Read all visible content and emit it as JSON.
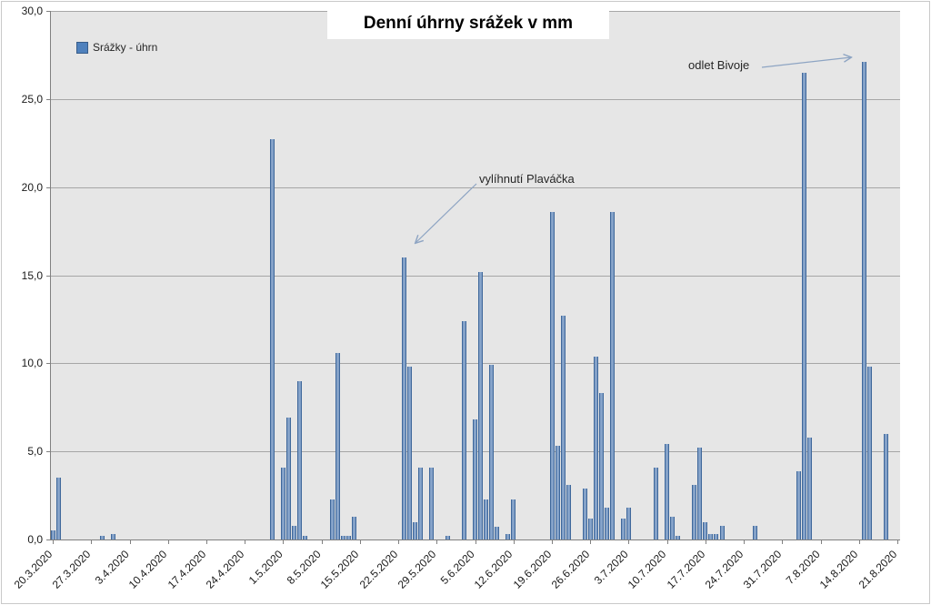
{
  "title": "Denní úhrny srážek v mm",
  "legend": {
    "label": "Srážky - úhrn",
    "swatch_color": "#4F81BD"
  },
  "annotations": {
    "hatch": {
      "text": "vylíhnutí Plaváčka",
      "target_date": "23.5.2020"
    },
    "departure": {
      "text": "odlet Bivoje",
      "target_date": "15.8.2020"
    }
  },
  "colors": {
    "bar_fill": "#4F81BD",
    "bar_border": "#3F689B",
    "plot_background": "#E6E6E6",
    "gridline": "#A6A6A6",
    "axis_line": "#808080",
    "arrow": "#8DA4C3"
  },
  "chart_data": {
    "type": "bar",
    "title": "Denní úhrny srážek v mm",
    "series_name": "Srážky - úhrn",
    "xlabel": "",
    "ylabel": "",
    "ylim": [
      0,
      30
    ],
    "grid": true,
    "legend_position": "top-left-inside",
    "y_tick_labels": [
      "0,0",
      "5,0",
      "10,0",
      "15,0",
      "20,0",
      "25,0",
      "30,0"
    ],
    "x_tick_labels": [
      "20.3.2020",
      "27.3.2020",
      "3.4.2020",
      "10.4.2020",
      "17.4.2020",
      "24.4.2020",
      "1.5.2020",
      "8.5.2020",
      "15.5.2020",
      "22.5.2020",
      "29.5.2020",
      "5.6.2020",
      "12.6.2020",
      "19.6.2020",
      "26.6.2020",
      "3.7.2020",
      "10.7.2020",
      "17.7.2020",
      "24.7.2020",
      "31.7.2020",
      "7.8.2020",
      "14.8.2020",
      "21.8.2020"
    ],
    "x_start_date": "20.3.2020",
    "x_end_date": "21.8.2020",
    "num_days": 155,
    "points": [
      {
        "day": 0,
        "date": "20.3.2020",
        "value": 0.5
      },
      {
        "day": 1,
        "date": "21.3.2020",
        "value": 3.5
      },
      {
        "day": 9,
        "date": "29.3.2020",
        "value": 0.2
      },
      {
        "day": 11,
        "date": "31.3.2020",
        "value": 0.3
      },
      {
        "day": 40,
        "date": "29.4.2020",
        "value": 22.7
      },
      {
        "day": 42,
        "date": "1.5.2020",
        "value": 4.1
      },
      {
        "day": 43,
        "date": "2.5.2020",
        "value": 6.9
      },
      {
        "day": 44,
        "date": "3.5.2020",
        "value": 0.8
      },
      {
        "day": 45,
        "date": "4.5.2020",
        "value": 9.0
      },
      {
        "day": 46,
        "date": "5.5.2020",
        "value": 0.2
      },
      {
        "day": 51,
        "date": "10.5.2020",
        "value": 2.3
      },
      {
        "day": 52,
        "date": "11.5.2020",
        "value": 10.6
      },
      {
        "day": 53,
        "date": "12.5.2020",
        "value": 0.2
      },
      {
        "day": 54,
        "date": "13.5.2020",
        "value": 0.2
      },
      {
        "day": 55,
        "date": "14.5.2020",
        "value": 1.3
      },
      {
        "day": 64,
        "date": "23.5.2020",
        "value": 16.0
      },
      {
        "day": 65,
        "date": "24.5.2020",
        "value": 9.8
      },
      {
        "day": 66,
        "date": "25.5.2020",
        "value": 1.0
      },
      {
        "day": 67,
        "date": "26.5.2020",
        "value": 4.1
      },
      {
        "day": 69,
        "date": "28.5.2020",
        "value": 4.1
      },
      {
        "day": 72,
        "date": "31.5.2020",
        "value": 0.2
      },
      {
        "day": 75,
        "date": "3.6.2020",
        "value": 12.4
      },
      {
        "day": 77,
        "date": "5.6.2020",
        "value": 6.8
      },
      {
        "day": 78,
        "date": "6.6.2020",
        "value": 15.2
      },
      {
        "day": 79,
        "date": "7.6.2020",
        "value": 2.3
      },
      {
        "day": 80,
        "date": "8.6.2020",
        "value": 9.9
      },
      {
        "day": 81,
        "date": "9.6.2020",
        "value": 0.7
      },
      {
        "day": 83,
        "date": "11.6.2020",
        "value": 0.3
      },
      {
        "day": 84,
        "date": "12.6.2020",
        "value": 2.3
      },
      {
        "day": 91,
        "date": "19.6.2020",
        "value": 18.6
      },
      {
        "day": 92,
        "date": "20.6.2020",
        "value": 5.3
      },
      {
        "day": 93,
        "date": "21.6.2020",
        "value": 12.7
      },
      {
        "day": 94,
        "date": "22.6.2020",
        "value": 3.1
      },
      {
        "day": 97,
        "date": "25.6.2020",
        "value": 2.9
      },
      {
        "day": 98,
        "date": "26.6.2020",
        "value": 1.2
      },
      {
        "day": 99,
        "date": "27.6.2020",
        "value": 10.4
      },
      {
        "day": 100,
        "date": "28.6.2020",
        "value": 8.3
      },
      {
        "day": 101,
        "date": "29.6.2020",
        "value": 1.8
      },
      {
        "day": 102,
        "date": "30.6.2020",
        "value": 18.6
      },
      {
        "day": 104,
        "date": "2.7.2020",
        "value": 1.2
      },
      {
        "day": 105,
        "date": "3.7.2020",
        "value": 1.8
      },
      {
        "day": 110,
        "date": "8.7.2020",
        "value": 4.1
      },
      {
        "day": 112,
        "date": "10.7.2020",
        "value": 5.4
      },
      {
        "day": 113,
        "date": "11.7.2020",
        "value": 1.3
      },
      {
        "day": 114,
        "date": "12.7.2020",
        "value": 0.2
      },
      {
        "day": 117,
        "date": "15.7.2020",
        "value": 3.1
      },
      {
        "day": 118,
        "date": "16.7.2020",
        "value": 5.2
      },
      {
        "day": 119,
        "date": "17.7.2020",
        "value": 1.0
      },
      {
        "day": 120,
        "date": "18.7.2020",
        "value": 0.3
      },
      {
        "day": 121,
        "date": "19.7.2020",
        "value": 0.3
      },
      {
        "day": 122,
        "date": "20.7.2020",
        "value": 0.8
      },
      {
        "day": 128,
        "date": "26.7.2020",
        "value": 0.8
      },
      {
        "day": 136,
        "date": "3.8.2020",
        "value": 3.9
      },
      {
        "day": 137,
        "date": "4.8.2020",
        "value": 26.5
      },
      {
        "day": 138,
        "date": "5.8.2020",
        "value": 5.8
      },
      {
        "day": 148,
        "date": "15.8.2020",
        "value": 27.1
      },
      {
        "day": 149,
        "date": "16.8.2020",
        "value": 9.8
      },
      {
        "day": 152,
        "date": "19.8.2020",
        "value": 6.0
      }
    ]
  }
}
